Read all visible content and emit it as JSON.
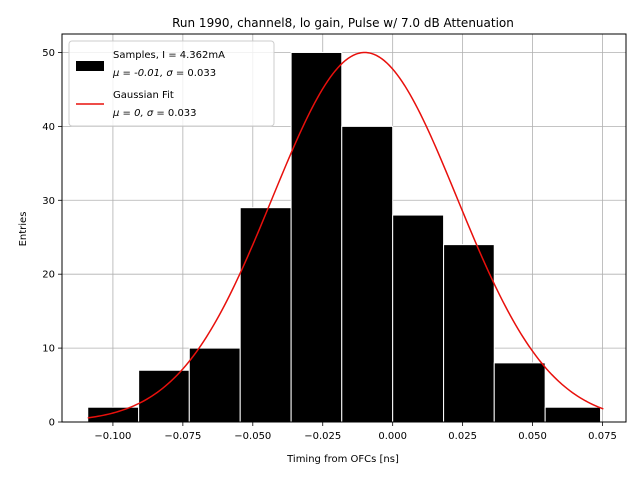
{
  "chart_data": {
    "type": "bar",
    "title": "Run 1990, channel8, lo gain, Pulse w/ 7.0 dB Attenuation",
    "xlabel": "Timing from OFCs [ns]",
    "ylabel": "Entries",
    "xlim": [
      -0.1182,
      0.0834
    ],
    "ylim": [
      0,
      52.5
    ],
    "grid": true,
    "xticks": [
      -0.1,
      -0.075,
      -0.05,
      -0.025,
      0.0,
      0.025,
      0.05,
      0.075
    ],
    "xtick_labels": [
      "−0.100",
      "−0.075",
      "−0.050",
      "−0.025",
      "0.000",
      "0.025",
      "0.050",
      "0.075"
    ],
    "yticks": [
      0,
      10,
      20,
      30,
      40,
      50
    ],
    "ytick_labels": [
      "0",
      "10",
      "20",
      "30",
      "40",
      "50"
    ],
    "histogram": {
      "name": "Samples",
      "bin_edges": [
        -0.109,
        -0.0908,
        -0.0727,
        -0.0545,
        -0.0363,
        -0.0182,
        0.0,
        0.0182,
        0.0363,
        0.0545,
        0.0743
      ],
      "counts": [
        2,
        7,
        10,
        29,
        50,
        40,
        28,
        24,
        8,
        2
      ],
      "color": "#000000",
      "edgecolor": "#ffffff"
    },
    "fit": {
      "name": "Gaussian Fit",
      "amplitude": 50,
      "mu_curve": -0.01,
      "sigma": 0.033,
      "x_range": [
        -0.109,
        0.0753
      ],
      "color": "#e8100c"
    },
    "legend": {
      "placement": "top-left",
      "entries": [
        {
          "line1": "Samples, I = 4.362mA",
          "line2_prefix": "μ = -0.01, ",
          "line2_sigma": "σ",
          "line2_suffix": " = 0.033"
        },
        {
          "line1": "Gaussian Fit",
          "line2_prefix": "μ = 0, ",
          "line2_sigma": "σ",
          "line2_suffix": " = 0.033"
        }
      ]
    }
  }
}
